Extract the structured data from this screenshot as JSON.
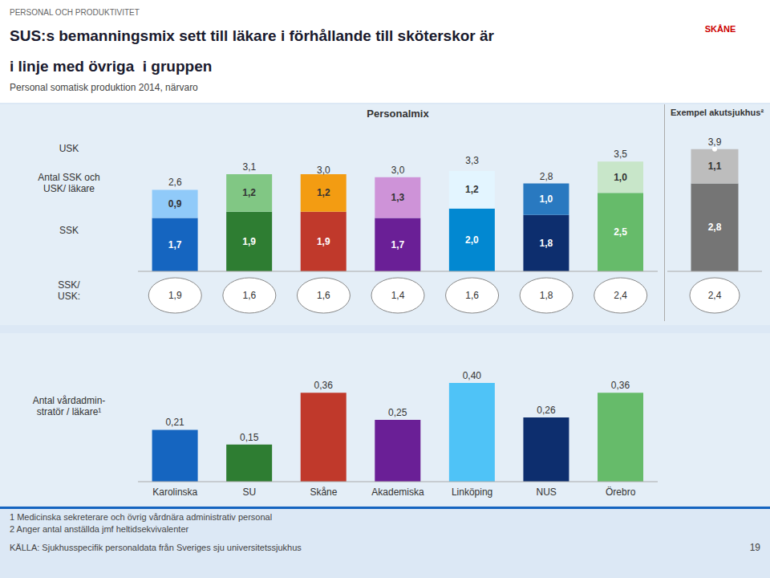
{
  "title": "SUS:s bemanningsmix sett till läkare i förhållande till sköterskor är\ni linje med övriga  i gruppen",
  "subtitle": "Personal somatisk produktion 2014, närvaro",
  "annotations": [
    "PERSONAL OCH PRODUKTIVITET",
    "SKÅNE",
    "1 Medicinska sekreterare och övrig vårdnära administrativ personal",
    "2 Anger antal anställda jmf heltidsekvivalenter",
    "KÄLLA: Sjukhusspecifik personaldata från Sveriges sju universitetssjukhus",
    "19"
  ],
  "chart_data": [
    {
      "type": "bar",
      "stacked": true,
      "title": "Personalmix",
      "ylabel": "Antal SSK och\nUSK/ läkare",
      "categories": [
        "Karolinska",
        "SU",
        "Skåne",
        "Akademiska",
        "Linköping",
        "NUS",
        "Örebro"
      ],
      "series": [
        {
          "name": "SSK",
          "colors": [
            "#1565c0",
            "#2e7d32",
            "#c0392b",
            "#6a1f96",
            "#0288d1",
            "#0d2e6e",
            "#66bb6a"
          ],
          "values": [
            1.7,
            1.9,
            1.9,
            1.7,
            2.0,
            1.8,
            2.5
          ],
          "value_labels": [
            "1,7",
            "1,9",
            "1,9",
            "1,7",
            "2,0",
            "1,8",
            "2,5"
          ]
        },
        {
          "name": "USK",
          "colors": [
            "#90caf9",
            "#81c784",
            "#f39c12",
            "#ce93d8",
            "#e3f5ff",
            "#2979c0",
            "#c8e6c9"
          ],
          "values": [
            0.9,
            1.2,
            1.2,
            1.3,
            1.2,
            1.0,
            1.0
          ],
          "value_labels": [
            "0,9",
            "1,2",
            "1,2",
            "1,3",
            "1,2",
            "1,0",
            "1,0"
          ]
        }
      ],
      "totals": [
        2.6,
        3.1,
        3.0,
        3.0,
        3.3,
        2.8,
        3.5
      ],
      "total_labels": [
        "2,6",
        "3,1",
        "3,0",
        "3,0",
        "3,3",
        "2,8",
        "3,5"
      ],
      "ratio_label": "SSK/\nUSK:",
      "ratios": [
        1.9,
        1.6,
        1.6,
        1.4,
        1.6,
        1.8,
        2.4
      ],
      "ratio_labels": [
        "1,9",
        "1,6",
        "1,6",
        "1,4",
        "1,6",
        "1,8",
        "2,4"
      ],
      "ylim": [
        0,
        4.3
      ],
      "yticks": [],
      "tick_labels": false,
      "data_labels": true
    },
    {
      "type": "bar",
      "stacked": true,
      "title": "Exempel akutsjukhus²",
      "categories": [
        null
      ],
      "series": [
        {
          "name": "SSK",
          "color": "#757575",
          "values": [
            2.8
          ],
          "value_labels": [
            "2,8"
          ]
        },
        {
          "name": "USK",
          "color": "#bdbdbd",
          "values": [
            1.1
          ],
          "value_labels": [
            "1,1"
          ]
        }
      ],
      "totals": [
        3.9
      ],
      "total_labels": [
        "3,9"
      ],
      "ratios": [
        2.4
      ],
      "ratio_labels": [
        "2,4"
      ],
      "ylim": [
        0,
        4.3
      ],
      "yticks": [],
      "tick_labels": false,
      "data_labels": true
    },
    {
      "type": "bar",
      "ylabel": "Antal vårdadmin-\nstratör / läkare¹",
      "categories": [
        "Karolinska",
        "SU",
        "Skåne",
        "Akademiska",
        "Linköping",
        "NUS",
        "Örebro"
      ],
      "values": [
        0.21,
        0.15,
        0.36,
        0.25,
        0.4,
        0.26,
        0.36
      ],
      "value_labels": [
        "0,21",
        "0,15",
        "0,36",
        "0,25",
        "0,40",
        "0,26",
        "0,36"
      ],
      "colors": [
        "#1565c0",
        "#2e7d32",
        "#c0392b",
        "#6a1f96",
        "#4fc3f7",
        "#0d2e6e",
        "#66bb6a"
      ],
      "ylim": [
        0,
        0.52
      ],
      "yticks": [],
      "tick_labels": "x",
      "data_labels": true
    }
  ]
}
